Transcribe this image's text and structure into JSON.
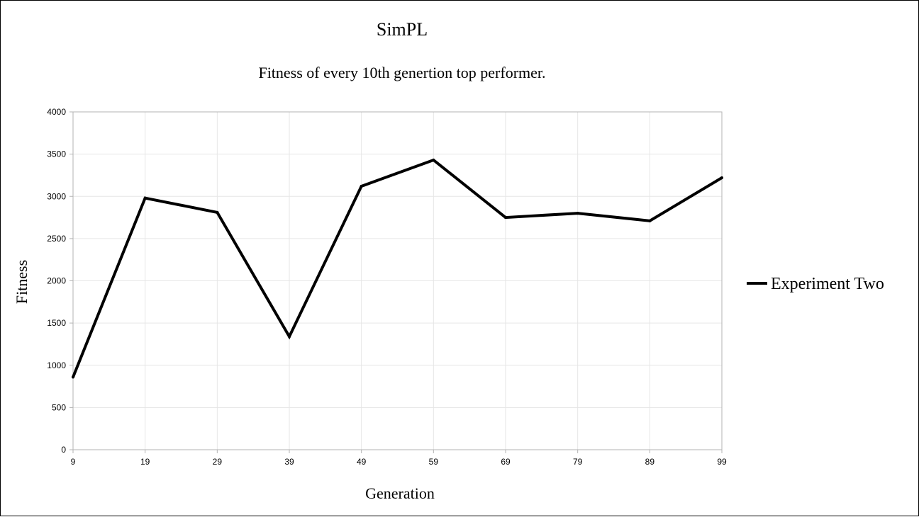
{
  "colors": {
    "series": "#000000",
    "axis": "#b3b3b3",
    "grid": "#e6e6e6",
    "background": "#ffffff"
  },
  "chart_data": {
    "type": "line",
    "title": "SimPL",
    "subtitle": "Fitness of every 10th genertion top performer.",
    "xlabel": "Generation",
    "ylabel": "Fitness",
    "categories": [
      "9",
      "19",
      "29",
      "39",
      "49",
      "59",
      "69",
      "79",
      "89",
      "99"
    ],
    "series": [
      {
        "name": "Experiment Two",
        "values": [
          860,
          2980,
          2810,
          1340,
          3120,
          3430,
          2750,
          2800,
          2710,
          3220
        ]
      }
    ],
    "ylim": [
      0,
      4000
    ],
    "yticks": [
      "0",
      "500",
      "1000",
      "1500",
      "2000",
      "2500",
      "3000",
      "3500",
      "4000"
    ],
    "grid": true,
    "legend": "right"
  }
}
